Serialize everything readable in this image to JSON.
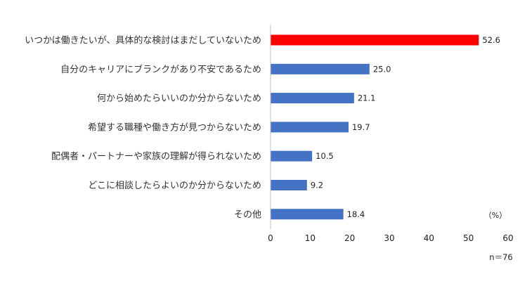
{
  "chart_data": {
    "type": "bar",
    "orientation": "horizontal",
    "categories": [
      "いつかは働きたいが、具体的な検討はまだしていないため",
      "自分のキャリアにブランクがあり不安であるため",
      "何から始めたらいいのか分からないため",
      "希望する職種や働き方が見つからないため",
      "配偶者・パートナーや家族の理解が得られないため",
      "どこに相談したらよいのか分からないため",
      "その他"
    ],
    "values": [
      52.6,
      25.0,
      21.1,
      19.7,
      10.5,
      9.2,
      18.4
    ],
    "value_labels": [
      "52.6",
      "25.0",
      "21.1",
      "19.7",
      "10.5",
      "9.2",
      "18.4"
    ],
    "highlight_index": 0,
    "xlim": [
      0,
      60
    ],
    "xticks": [
      0,
      10,
      20,
      30,
      40,
      50,
      60
    ],
    "unit": "（%）",
    "sample_size": "n＝76",
    "colors": {
      "highlight": "#ff0000",
      "default": "#4472c4"
    },
    "grid": false
  }
}
